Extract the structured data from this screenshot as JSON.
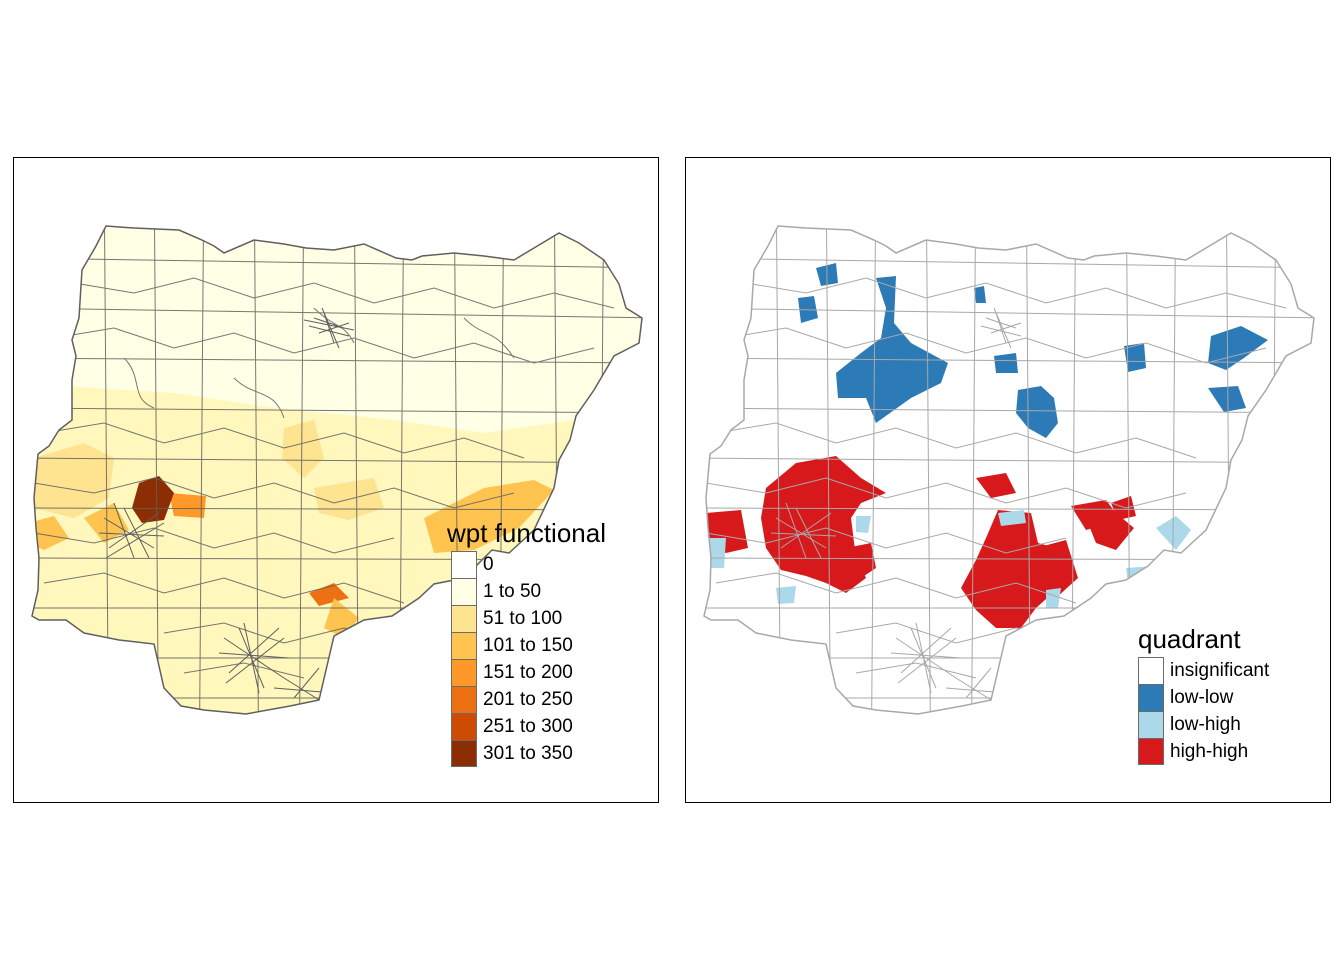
{
  "maps": [
    {
      "legend": {
        "title": "wpt functional",
        "classes": [
          {
            "label": "0",
            "color": "#ffffff"
          },
          {
            "label": "1 to 50",
            "color": "#ffffe5"
          },
          {
            "label": "51 to 100",
            "color": "#fee391"
          },
          {
            "label": "101 to 150",
            "color": "#fec44f"
          },
          {
            "label": "151 to 200",
            "color": "#fe9929"
          },
          {
            "label": "201 to 250",
            "color": "#ec7014"
          },
          {
            "label": "251 to 300",
            "color": "#cc4c02"
          },
          {
            "label": "301 to 350",
            "color": "#8c2d04"
          }
        ]
      }
    },
    {
      "legend": {
        "title": "quadrant",
        "classes": [
          {
            "label": "insignificant",
            "color": "#ffffff"
          },
          {
            "label": "low-low",
            "color": "#2c7bb6"
          },
          {
            "label": "low-high",
            "color": "#abd9e9"
          },
          {
            "label": "high-high",
            "color": "#d7191c"
          }
        ]
      }
    }
  ]
}
